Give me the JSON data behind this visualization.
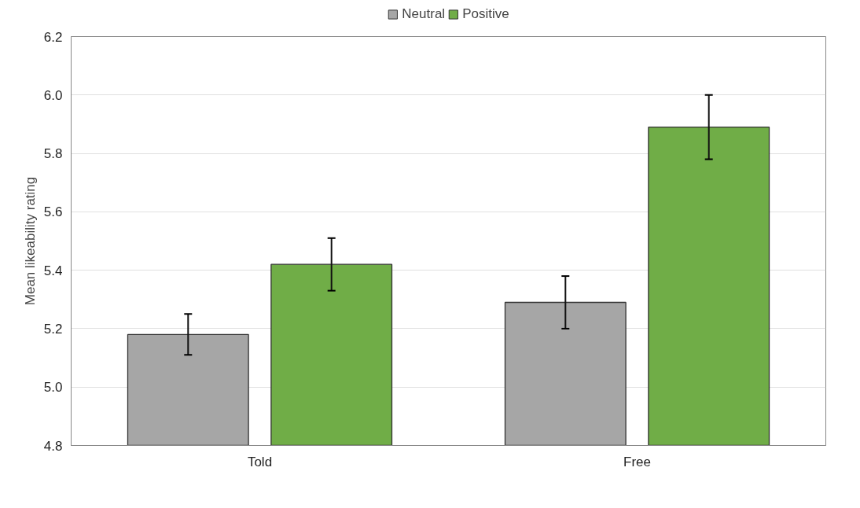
{
  "chart_data": {
    "type": "bar",
    "ylabel": "Mean likeability rating",
    "categories": [
      "Told",
      "Free"
    ],
    "series": [
      {
        "name": "Neutral",
        "color": "#a6a6a6",
        "values": [
          5.18,
          5.29
        ],
        "errors": [
          0.07,
          0.09
        ]
      },
      {
        "name": "Positive",
        "color": "#70ad47",
        "values": [
          5.42,
          5.89
        ],
        "errors": [
          0.09,
          0.11
        ]
      }
    ],
    "ylim": [
      4.8,
      6.2
    ],
    "yticks": [
      4.8,
      {
        "value": 5.0,
        "label": "5.0"
      },
      5.2,
      5.4,
      5.6,
      5.8,
      {
        "value": 6.0,
        "label": "6.0"
      },
      6.2
    ],
    "grid": "y",
    "legend": "top"
  }
}
